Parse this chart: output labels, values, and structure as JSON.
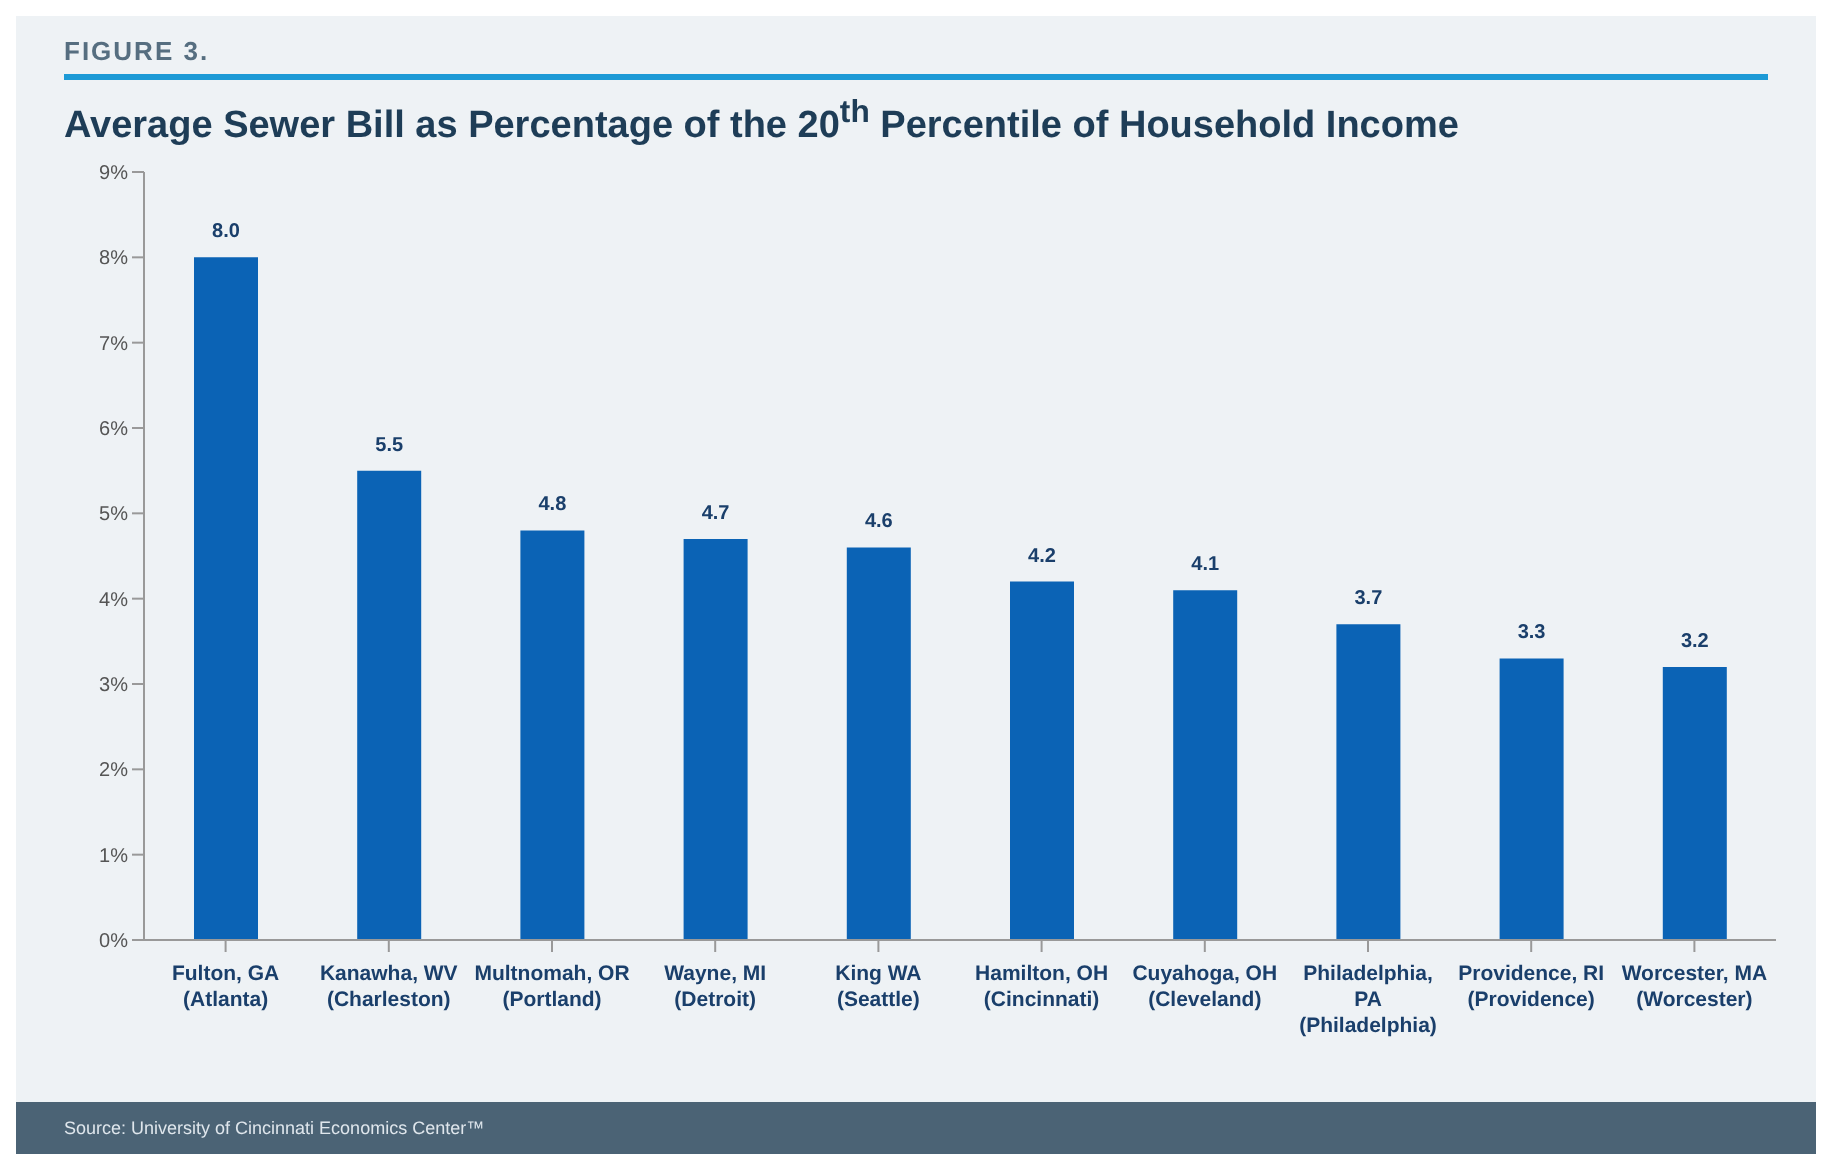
{
  "chart_data": {
    "type": "bar",
    "subtitle": "FIGURE 3.",
    "title": "Average Sewer Bill as Percentage of the 20$^{th}$ Percentile of Household Income",
    "categories": [
      "Fulton, GA (Atlanta)",
      "Kanawha, WV (Charleston)",
      "Multnomah, OR (Portland)",
      "Wayne, MI (Detroit)",
      "King WA (Seattle)",
      "Hamilton, OH (Cincinnati)",
      "Cuyahoga, OH (Cleveland)",
      "Philadelphia, PA (Philadelphia)",
      "Providence, RI (Providence)",
      "Worcester, MA (Worcester)"
    ],
    "values": [
      8.0,
      5.5,
      4.8,
      4.7,
      4.6,
      4.2,
      4.1,
      3.7,
      3.3,
      3.2
    ],
    "value_labels": [
      "8.0",
      "5.5",
      "4.8",
      "4.7",
      "4.6",
      "4.2",
      "4.1",
      "3.7",
      "3.3",
      "3.2"
    ],
    "color": "#0b63b5",
    "ylim": [
      0,
      9
    ],
    "yticks": [
      {
        "value": 0,
        "label": "0%"
      },
      {
        "value": 1,
        "label": "1%"
      },
      {
        "value": 2,
        "label": "2%"
      },
      {
        "value": 3,
        "label": "3%"
      },
      {
        "value": 4,
        "label": "4%"
      },
      {
        "value": 5,
        "label": "5%"
      },
      {
        "value": 6,
        "label": "6%"
      },
      {
        "value": 7,
        "label": "7%"
      },
      {
        "value": 8,
        "label": "8%"
      },
      {
        "value": 9,
        "label": "9%"
      }
    ],
    "grid": false,
    "legend": false,
    "annotations": [
      "Source: University of Cincinnati Economics Center™"
    ]
  }
}
